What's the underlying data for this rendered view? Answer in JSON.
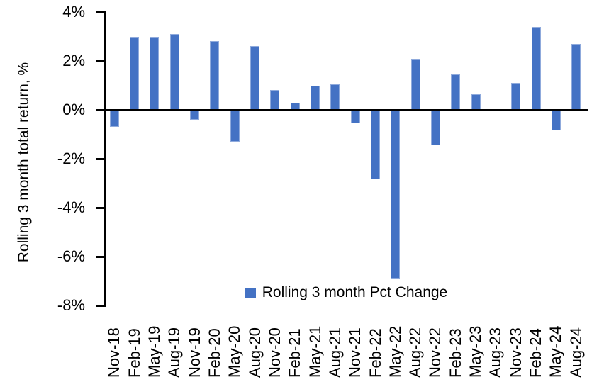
{
  "chart_data": {
    "type": "bar",
    "title": "",
    "xlabel": "",
    "ylabel": "Rolling 3 month total return, %",
    "ylim": [
      -8,
      4
    ],
    "grid": false,
    "legend": {
      "label": "Rolling 3 month Pct Change",
      "position": "bottom-center"
    },
    "yticks": {
      "values": [
        4,
        2,
        0,
        -2,
        -4,
        -6,
        -8
      ],
      "labels": [
        "4%",
        "2%",
        "0%",
        "-2%",
        "-4%",
        "-6%",
        "-8%"
      ]
    },
    "categories": [
      "Nov-18",
      "Feb-19",
      "May-19",
      "Aug-19",
      "Nov-19",
      "Feb-20",
      "May-20",
      "Aug-20",
      "Nov-20",
      "Feb-21",
      "May-21",
      "Aug-21",
      "Nov-21",
      "Feb-22",
      "May-22",
      "Aug-22",
      "Nov-22",
      "Feb-23",
      "May-23",
      "Aug-23",
      "Nov-23",
      "Feb-24",
      "May-24",
      "Aug-24"
    ],
    "series": [
      {
        "name": "Rolling 3 month Pct Change",
        "values": [
          -0.7,
          3.0,
          3.0,
          3.1,
          -0.4,
          2.8,
          -1.3,
          2.6,
          0.8,
          0.3,
          1.0,
          1.05,
          -0.55,
          -2.85,
          -6.9,
          2.1,
          -1.45,
          1.45,
          0.65,
          0,
          1.1,
          3.4,
          -0.85,
          2.7
        ]
      }
    ],
    "colors": {
      "bar": "#4472C4",
      "bar_edge": "#8FAADC",
      "axis": "#000000",
      "text": "#000000",
      "background": "#FFFFFF"
    }
  }
}
